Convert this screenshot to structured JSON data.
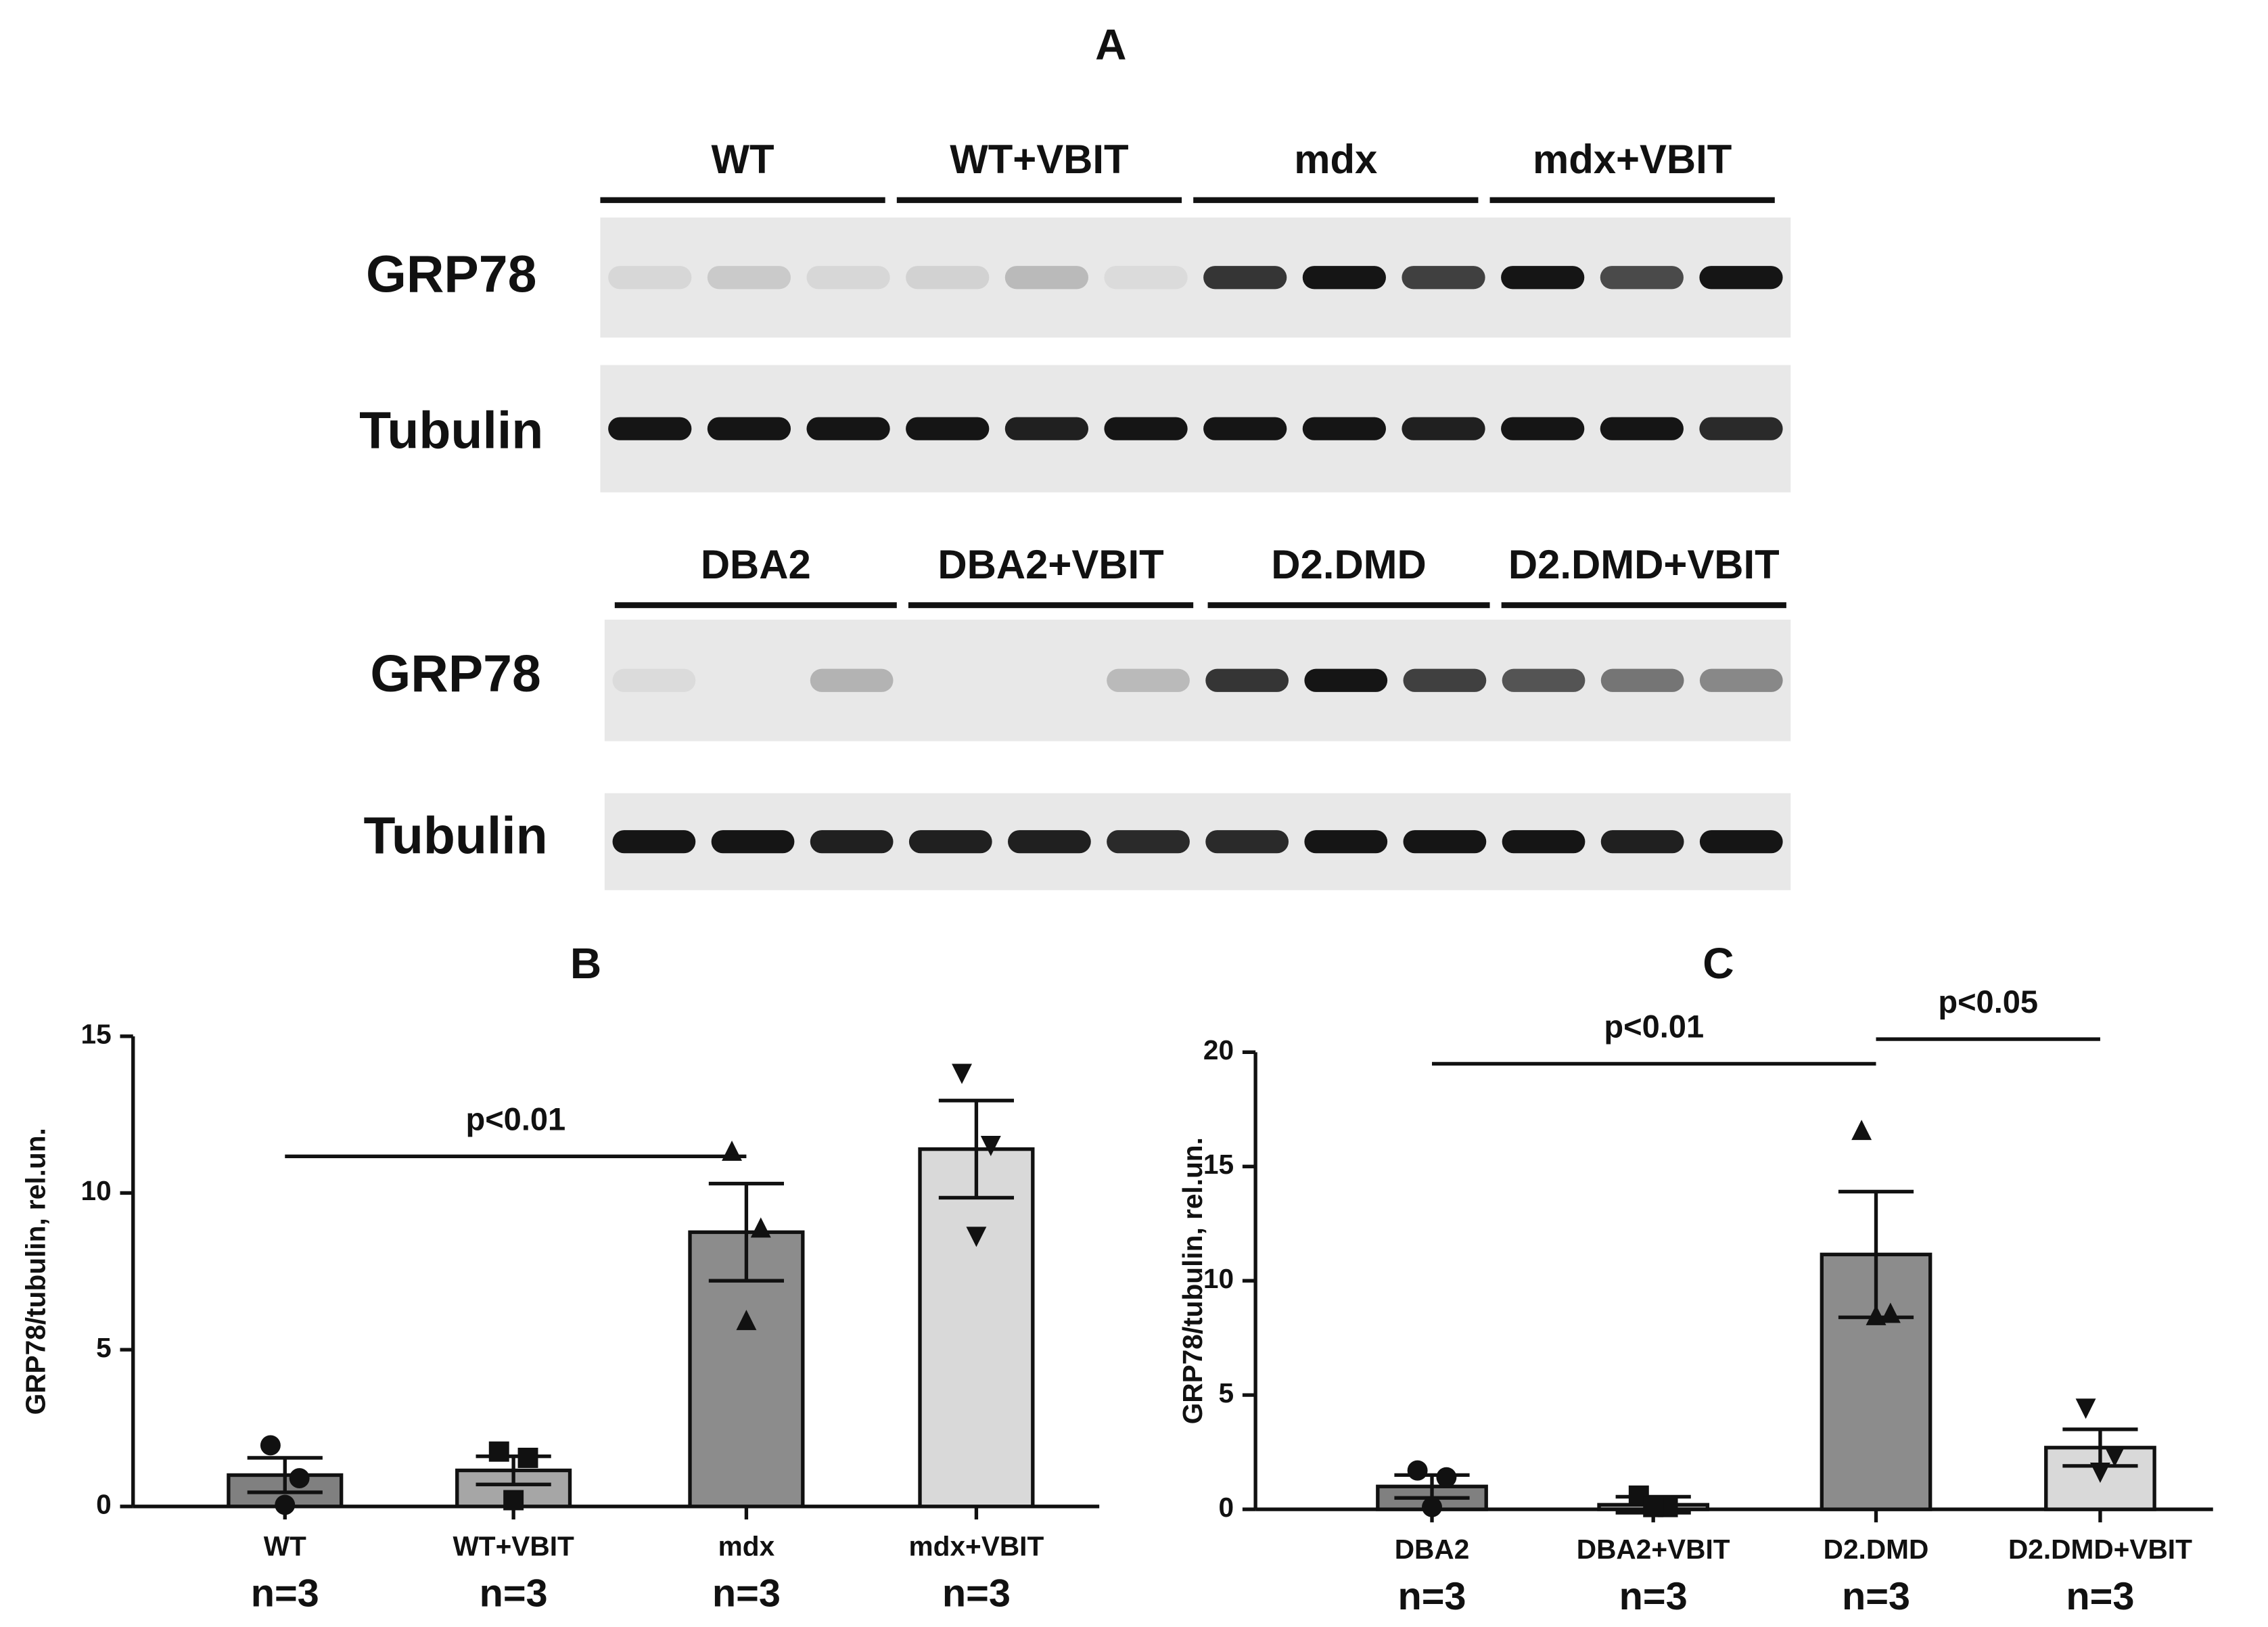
{
  "blot": {
    "title": "A",
    "panels": [
      {
        "groups": [
          "WT",
          "WT+VBIT",
          "mdx",
          "mdx+VBIT"
        ],
        "rows": [
          "GRP78",
          "Tubulin"
        ]
      },
      {
        "groups": [
          "DBA2",
          "DBA2+VBIT",
          "D2.DMD",
          "D2.DMD+VBIT"
        ],
        "rows": [
          "GRP78",
          "Tubulin"
        ]
      }
    ]
  },
  "chart_data": [
    {
      "type": "bar",
      "title": "B",
      "y_label": "GRP78/tubulin, rel.un.",
      "categories": [
        "WT",
        "WT+VBIT",
        "mdx",
        "mdx+VBIT"
      ],
      "sample_labels": [
        "n=3",
        "n=3",
        "n=3",
        "n=3"
      ],
      "values": [
        1.0,
        1.15,
        8.75,
        11.4
      ],
      "errors": [
        0.55,
        0.45,
        1.55,
        1.55
      ],
      "points": [
        [
          1.95,
          0.9,
          0.05
        ],
        [
          1.75,
          1.55,
          0.2
        ],
        [
          11.35,
          8.9,
          5.95
        ],
        [
          13.8,
          11.5,
          8.6
        ]
      ],
      "colors": [
        "#808080",
        "#a6a6a6",
        "#8c8c8c",
        "#d9d9d9"
      ],
      "markers": [
        "circle",
        "square",
        "triangle",
        "triangle-down"
      ],
      "ylim": [
        0,
        15
      ],
      "yticks": [
        0,
        5,
        10,
        15
      ],
      "annotations": [
        {
          "text": "p<0.01",
          "from": "WT",
          "to": "mdx"
        }
      ]
    },
    {
      "type": "bar",
      "title": "C",
      "y_label": "GRP78/tubulin, rel.un.",
      "categories": [
        "DBA2",
        "DBA2+VBIT",
        "D2.DMD",
        "D2.DMD+VBIT"
      ],
      "sample_labels": [
        "n=3",
        "n=3",
        "n=3",
        "n=3"
      ],
      "values": [
        1.0,
        0.2,
        11.15,
        2.7
      ],
      "errors": [
        0.5,
        0.35,
        2.75,
        0.8
      ],
      "points": [
        [
          1.7,
          1.4,
          0.1
        ],
        [
          0.6,
          0.1,
          0.1
        ],
        [
          16.6,
          8.6,
          8.5
        ],
        [
          4.4,
          2.3,
          1.6
        ]
      ],
      "colors": [
        "#808080",
        "#a6a6a6",
        "#8c8c8c",
        "#d9d9d9"
      ],
      "markers": [
        "circle",
        "square",
        "triangle",
        "triangle-down"
      ],
      "ylim": [
        0,
        20
      ],
      "yticks": [
        0,
        5,
        10,
        15,
        20
      ],
      "annotations": [
        {
          "text": "p<0.01",
          "from": "DBA2",
          "to": "D2.DMD"
        },
        {
          "text": "p<0.05",
          "from": "D2.DMD",
          "to": "D2.DMD+VBIT"
        }
      ]
    }
  ]
}
